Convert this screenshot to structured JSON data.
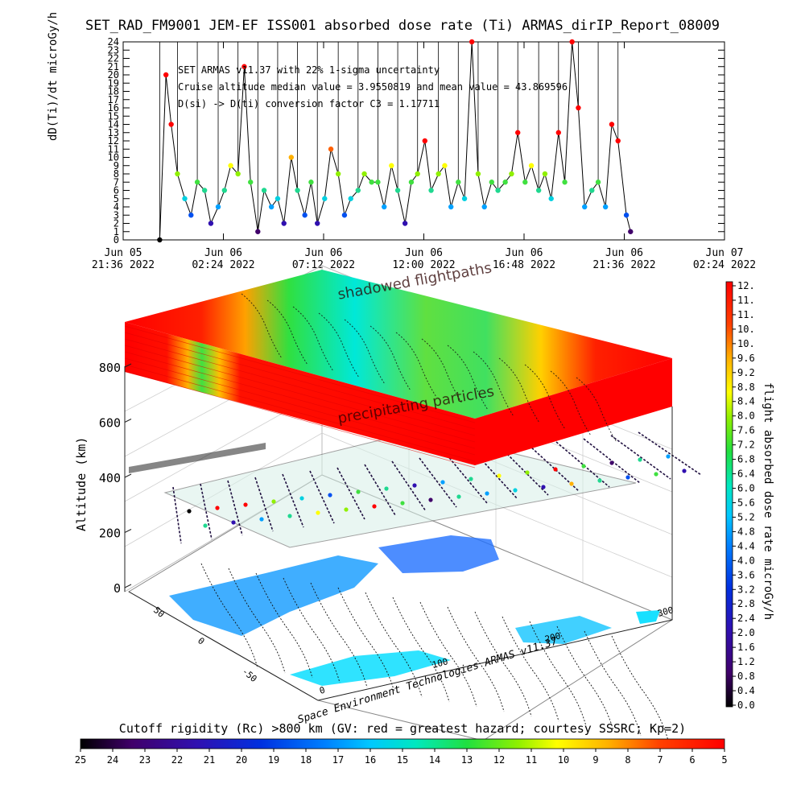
{
  "title": "SET_RAD_FM9001  JEM-EF ISS001 absorbed dose rate (Ti) ARMAS_dirIP_Report_08009",
  "annotations": {
    "line1": "SET ARMAS v11.37 with 22% 1-sigma uncertainty",
    "line2": "Cruise altitude median value = 3.9550819 and mean value = 43.869596",
    "line3": "D(si) -> D(ti) conversion factor C3 = 1.17711"
  },
  "scene": {
    "shadowed_label": "shadowed flightpaths",
    "precip_label": "precipitating particles",
    "alt_label": "Altitude (km)",
    "alt_ticks": [
      "0",
      "200",
      "400",
      "600",
      "800"
    ],
    "lon_ticks": [
      "0",
      "100",
      "200",
      "300"
    ],
    "lat_ticks": [
      "-50",
      "0",
      "50"
    ],
    "credit": "Space Environment Technologies ARMAS v11.37"
  },
  "right_colorbar": {
    "label": "flight absorbed dose rate microGy/h",
    "ticks": [
      "12.",
      "11.",
      "11.",
      "10.",
      "10.",
      "9.6",
      "9.2",
      "8.8",
      "8.4",
      "8.0",
      "7.6",
      "7.2",
      "6.8",
      "6.4",
      "6.0",
      "5.6",
      "5.2",
      "4.8",
      "4.4",
      "4.0",
      "3.6",
      "3.2",
      "2.8",
      "2.4",
      "2.0",
      "1.6",
      "1.2",
      "0.8",
      "0.4",
      "0.0"
    ]
  },
  "bottom_colorbar": {
    "label": "Cutoff rigidity (Rc) >800 km (GV: red = greatest hazard; courtesy SSSRC; Kp=2)",
    "ticks": [
      "25",
      "24",
      "23",
      "22",
      "21",
      "20",
      "19",
      "18",
      "17",
      "16",
      "15",
      "14",
      "13",
      "12",
      "11",
      "10",
      "9",
      "8",
      "7",
      "6",
      "5"
    ]
  },
  "chart_data": {
    "type": "line",
    "title": "SET_RAD_FM9001  JEM-EF ISS001 absorbed dose rate (Ti) ARMAS_dirIP_Report_08009",
    "ylabel": "dD(Ti)/dt microGy/h",
    "xlabel": "",
    "ylim": [
      0,
      24
    ],
    "yticks": [
      "0",
      "1",
      "2",
      "3",
      "4",
      "5",
      "6",
      "7",
      "8",
      "9",
      "10",
      "11",
      "12",
      "13",
      "14",
      "15",
      "16",
      "17",
      "18",
      "19",
      "20",
      "21",
      "22",
      "23",
      "24"
    ],
    "xticks": [
      {
        "l1": "Jun 05",
        "l2": "21:36 2022"
      },
      {
        "l1": "Jun 06",
        "l2": "02:24 2022"
      },
      {
        "l1": "Jun 06",
        "l2": "07:12 2022"
      },
      {
        "l1": "Jun 06",
        "l2": "12:00 2022"
      },
      {
        "l1": "Jun 06",
        "l2": "16:48 2022"
      },
      {
        "l1": "Jun 06",
        "l2": "21:36 2022"
      },
      {
        "l1": "Jun 07",
        "l2": "02:24 2022"
      }
    ],
    "x_hours_from_first_tick": {
      "min": 0,
      "max": 28.8,
      "tick_step": 4.8
    },
    "series": [
      {
        "hours": [
          1.75,
          2.05,
          2.3,
          2.6,
          2.95,
          3.25,
          3.55,
          3.9,
          4.2,
          4.55,
          4.85,
          5.15,
          5.5,
          5.8,
          6.1,
          6.45,
          6.75,
          7.1,
          7.4,
          7.7,
          8.05,
          8.35,
          8.7,
          9.0,
          9.3,
          9.65,
          9.95,
          10.3,
          10.6,
          10.9,
          11.25,
          11.55,
          11.9,
          12.2,
          12.5,
          12.85,
          13.15,
          13.5,
          13.8,
          14.1,
          14.45,
          14.75,
          15.1,
          15.4,
          15.7,
          16.05,
          16.35,
          16.7,
          17.0,
          17.3,
          17.65,
          17.95,
          18.3,
          18.6,
          18.9,
          19.25,
          19.55,
          19.9,
          20.2,
          20.5,
          20.85,
          21.15,
          21.5,
          21.8,
          22.1,
          22.45,
          22.75,
          23.1,
          23.4,
          23.7,
          24.1,
          24.3
        ],
        "values": [
          0,
          20,
          14,
          8,
          5,
          3,
          7,
          6,
          2,
          4,
          6,
          9,
          8,
          21,
          7,
          1,
          6,
          4,
          5,
          2,
          10,
          6,
          3,
          7,
          2,
          5,
          11,
          8,
          3,
          5,
          6,
          8,
          7,
          7,
          4,
          9,
          6,
          2,
          7,
          8,
          12,
          6,
          8,
          9,
          4,
          7,
          5,
          24,
          8,
          4,
          7,
          6,
          7,
          8,
          13,
          7,
          9,
          6,
          8,
          5,
          13,
          7,
          24,
          16,
          4,
          6,
          7,
          4,
          14,
          12,
          3,
          1
        ]
      }
    ]
  }
}
